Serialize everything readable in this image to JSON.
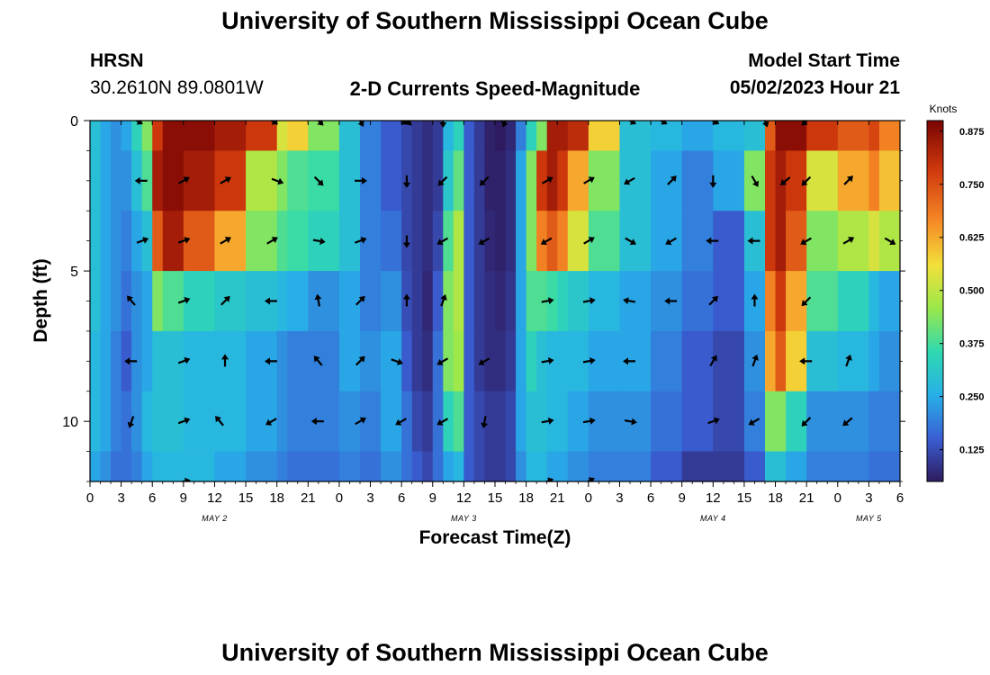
{
  "header": {
    "title": "University of Southern Mississippi Ocean Cube",
    "station": "HRSN",
    "coords": "30.2610N  89.0801W",
    "subtitle": "2-D Currents Speed-Magnitude",
    "model_start_label": "Model Start Time",
    "model_start_value": "05/02/2023 Hour 21"
  },
  "footer": {
    "title": "University of Southern Mississippi Ocean Cube"
  },
  "colors": {
    "scale": [
      "#2e1b5f",
      "#3a5fd4",
      "#27b0e8",
      "#2fd9b0",
      "#9ae84a",
      "#f2e03a",
      "#f68a26",
      "#d13a0d",
      "#7a0403"
    ],
    "arrow": "#000000"
  },
  "chart_data": {
    "type": "heatmap",
    "title": "2-D Currents Speed-Magnitude",
    "xlabel": "Forecast Time(Z)",
    "ylabel": "Depth (ft)",
    "x_tick_labels": [
      "0",
      "3",
      "6",
      "9",
      "12",
      "15",
      "18",
      "21",
      "0",
      "3",
      "6",
      "9",
      "12",
      "15",
      "18",
      "21",
      "0",
      "3",
      "6",
      "9",
      "12",
      "15",
      "18",
      "21",
      "0",
      "3",
      "6"
    ],
    "x_range_hours": [
      0,
      78
    ],
    "y_tick_labels": [
      "0",
      "5",
      "10"
    ],
    "y_ticks": [
      0,
      5,
      10
    ],
    "y_range_ft": [
      0,
      12
    ],
    "date_labels": [
      {
        "text": "MAY 2",
        "hour": 12
      },
      {
        "text": "MAY 3",
        "hour": 36
      },
      {
        "text": "MAY 4",
        "hour": 60
      },
      {
        "text": "MAY 5",
        "hour": 75
      }
    ],
    "colorbar": {
      "label": "Knots",
      "ticks": [
        "0.125",
        "0.250",
        "0.375",
        "0.500",
        "0.625",
        "0.750",
        "0.875"
      ],
      "tick_values": [
        0.125,
        0.25,
        0.375,
        0.5,
        0.625,
        0.75,
        0.875
      ],
      "range": [
        0.05,
        0.9
      ]
    },
    "depth_levels_ft": [
      0,
      2,
      4,
      6,
      8,
      10,
      12
    ],
    "time_segments_hours": [
      0,
      1,
      2,
      3,
      4,
      5,
      6,
      7,
      9,
      12,
      15,
      18,
      19,
      21,
      24,
      26,
      28,
      30,
      31,
      32,
      33,
      34,
      35,
      36,
      37,
      38,
      39,
      40,
      41,
      42,
      43,
      44,
      45,
      46,
      48,
      51,
      54,
      57,
      60,
      63,
      65,
      66,
      67,
      69,
      72,
      75,
      76,
      78
    ],
    "speed_knots_by_level": [
      [
        0.3,
        0.25,
        0.22,
        0.25,
        0.35,
        0.45,
        0.8,
        0.88,
        0.88,
        0.85,
        0.8,
        0.55,
        0.6,
        0.45,
        0.3,
        0.2,
        0.15,
        0.12,
        0.1,
        0.08,
        0.1,
        0.28,
        0.35,
        0.15,
        0.1,
        0.06,
        0.05,
        0.07,
        0.2,
        0.35,
        0.45,
        0.85,
        0.85,
        0.82,
        0.6,
        0.3,
        0.28,
        0.25,
        0.28,
        0.3,
        0.75,
        0.88,
        0.88,
        0.8,
        0.75,
        0.78,
        0.7
      ],
      [
        0.3,
        0.25,
        0.22,
        0.22,
        0.3,
        0.4,
        0.85,
        0.88,
        0.85,
        0.8,
        0.5,
        0.45,
        0.4,
        0.38,
        0.3,
        0.2,
        0.15,
        0.12,
        0.1,
        0.08,
        0.1,
        0.32,
        0.42,
        0.15,
        0.1,
        0.06,
        0.06,
        0.08,
        0.25,
        0.45,
        0.8,
        0.85,
        0.8,
        0.65,
        0.45,
        0.3,
        0.25,
        0.2,
        0.25,
        0.45,
        0.8,
        0.85,
        0.8,
        0.55,
        0.65,
        0.7,
        0.62
      ],
      [
        0.3,
        0.25,
        0.22,
        0.2,
        0.25,
        0.3,
        0.75,
        0.85,
        0.75,
        0.65,
        0.45,
        0.4,
        0.38,
        0.35,
        0.3,
        0.2,
        0.18,
        0.12,
        0.1,
        0.08,
        0.12,
        0.4,
        0.5,
        0.15,
        0.1,
        0.07,
        0.06,
        0.08,
        0.25,
        0.45,
        0.7,
        0.75,
        0.7,
        0.55,
        0.4,
        0.3,
        0.25,
        0.2,
        0.15,
        0.3,
        0.8,
        0.85,
        0.75,
        0.45,
        0.5,
        0.55,
        0.5
      ],
      [
        0.3,
        0.25,
        0.22,
        0.18,
        0.22,
        0.25,
        0.45,
        0.4,
        0.35,
        0.32,
        0.3,
        0.28,
        0.26,
        0.22,
        0.25,
        0.2,
        0.22,
        0.13,
        0.1,
        0.07,
        0.15,
        0.45,
        0.5,
        0.15,
        0.1,
        0.08,
        0.07,
        0.09,
        0.25,
        0.4,
        0.4,
        0.38,
        0.35,
        0.32,
        0.28,
        0.25,
        0.22,
        0.18,
        0.15,
        0.25,
        0.7,
        0.8,
        0.65,
        0.4,
        0.35,
        0.28,
        0.25
      ],
      [
        0.28,
        0.25,
        0.2,
        0.15,
        0.22,
        0.25,
        0.3,
        0.3,
        0.28,
        0.28,
        0.25,
        0.22,
        0.2,
        0.2,
        0.25,
        0.22,
        0.25,
        0.15,
        0.1,
        0.08,
        0.18,
        0.45,
        0.48,
        0.15,
        0.1,
        0.08,
        0.08,
        0.1,
        0.25,
        0.35,
        0.3,
        0.28,
        0.28,
        0.28,
        0.25,
        0.25,
        0.2,
        0.15,
        0.12,
        0.22,
        0.65,
        0.75,
        0.6,
        0.3,
        0.28,
        0.25,
        0.22
      ],
      [
        0.28,
        0.25,
        0.2,
        0.18,
        0.22,
        0.28,
        0.3,
        0.3,
        0.28,
        0.28,
        0.25,
        0.22,
        0.2,
        0.2,
        0.22,
        0.2,
        0.25,
        0.18,
        0.12,
        0.1,
        0.18,
        0.35,
        0.4,
        0.15,
        0.12,
        0.1,
        0.1,
        0.12,
        0.25,
        0.3,
        0.3,
        0.28,
        0.28,
        0.25,
        0.22,
        0.22,
        0.18,
        0.15,
        0.12,
        0.2,
        0.45,
        0.45,
        0.35,
        0.22,
        0.22,
        0.2,
        0.2
      ],
      [
        0.25,
        0.22,
        0.18,
        0.18,
        0.2,
        0.25,
        0.28,
        0.28,
        0.28,
        0.25,
        0.22,
        0.2,
        0.18,
        0.18,
        0.2,
        0.18,
        0.22,
        0.18,
        0.15,
        0.12,
        0.18,
        0.25,
        0.28,
        0.15,
        0.12,
        0.1,
        0.1,
        0.12,
        0.22,
        0.28,
        0.28,
        0.25,
        0.25,
        0.22,
        0.2,
        0.2,
        0.15,
        0.1,
        0.1,
        0.15,
        0.3,
        0.3,
        0.25,
        0.2,
        0.2,
        0.18,
        0.18
      ]
    ],
    "current_vectors": {
      "note": "direction in degrees clockwise from north (toward)",
      "rows": [
        {
          "depth_ft": 0,
          "vectors": [
            {
              "h": 4.5,
              "dir": 120
            },
            {
              "h": 17.5,
              "dir": 120
            },
            {
              "h": 22,
              "dir": 135
            },
            {
              "h": 26,
              "dir": 150
            },
            {
              "h": 30,
              "dir": 120
            },
            {
              "h": 30.5,
              "dir": 135
            },
            {
              "h": 34,
              "dir": 180
            },
            {
              "h": 40,
              "dir": 200
            },
            {
              "h": 52,
              "dir": 120
            },
            {
              "h": 55,
              "dir": 120
            },
            {
              "h": 60,
              "dir": 120
            },
            {
              "h": 65,
              "dir": 160
            },
            {
              "h": 69,
              "dir": 225
            }
          ]
        },
        {
          "depth_ft": 2,
          "vectors": [
            {
              "h": 5,
              "dir": 270
            },
            {
              "h": 9,
              "dir": 60
            },
            {
              "h": 13,
              "dir": 60
            },
            {
              "h": 18,
              "dir": 110
            },
            {
              "h": 22,
              "dir": 135
            },
            {
              "h": 26,
              "dir": 90
            },
            {
              "h": 30.5,
              "dir": 180
            },
            {
              "h": 34,
              "dir": 225
            },
            {
              "h": 38,
              "dir": 225
            },
            {
              "h": 44,
              "dir": 60
            },
            {
              "h": 48,
              "dir": 60
            },
            {
              "h": 52,
              "dir": 240
            },
            {
              "h": 56,
              "dir": 45
            },
            {
              "h": 60,
              "dir": 180
            },
            {
              "h": 64,
              "dir": 150
            },
            {
              "h": 67,
              "dir": 230
            },
            {
              "h": 69,
              "dir": 225
            },
            {
              "h": 73,
              "dir": 45
            }
          ]
        },
        {
          "depth_ft": 4,
          "vectors": [
            {
              "h": 5,
              "dir": 70
            },
            {
              "h": 9,
              "dir": 70
            },
            {
              "h": 13,
              "dir": 60
            },
            {
              "h": 17.5,
              "dir": 60
            },
            {
              "h": 22,
              "dir": 100
            },
            {
              "h": 26,
              "dir": 70
            },
            {
              "h": 30.5,
              "dir": 180
            },
            {
              "h": 34,
              "dir": 240
            },
            {
              "h": 38,
              "dir": 240
            },
            {
              "h": 44,
              "dir": 240
            },
            {
              "h": 48,
              "dir": 60
            },
            {
              "h": 52,
              "dir": 120
            },
            {
              "h": 56,
              "dir": 240
            },
            {
              "h": 60,
              "dir": 270
            },
            {
              "h": 64,
              "dir": 270
            },
            {
              "h": 69,
              "dir": 240
            },
            {
              "h": 73,
              "dir": 60
            },
            {
              "h": 77,
              "dir": 120
            }
          ]
        },
        {
          "depth_ft": 6,
          "vectors": [
            {
              "h": 4,
              "dir": 320
            },
            {
              "h": 9,
              "dir": 70
            },
            {
              "h": 13,
              "dir": 45
            },
            {
              "h": 17.5,
              "dir": 270
            },
            {
              "h": 22,
              "dir": 350
            },
            {
              "h": 26,
              "dir": 45
            },
            {
              "h": 30.5,
              "dir": 0
            },
            {
              "h": 34,
              "dir": 20
            },
            {
              "h": 44,
              "dir": 80
            },
            {
              "h": 48,
              "dir": 80
            },
            {
              "h": 52,
              "dir": 280
            },
            {
              "h": 56,
              "dir": 270
            },
            {
              "h": 60,
              "dir": 45
            },
            {
              "h": 64,
              "dir": 0
            },
            {
              "h": 69,
              "dir": 225
            }
          ]
        },
        {
          "depth_ft": 8,
          "vectors": [
            {
              "h": 4,
              "dir": 270
            },
            {
              "h": 9,
              "dir": 70
            },
            {
              "h": 13,
              "dir": 0
            },
            {
              "h": 17.5,
              "dir": 270
            },
            {
              "h": 22,
              "dir": 320
            },
            {
              "h": 26,
              "dir": 45
            },
            {
              "h": 29.5,
              "dir": 110
            },
            {
              "h": 34,
              "dir": 240
            },
            {
              "h": 38,
              "dir": 240
            },
            {
              "h": 44,
              "dir": 80
            },
            {
              "h": 48,
              "dir": 80
            },
            {
              "h": 52,
              "dir": 270
            },
            {
              "h": 60,
              "dir": 30
            },
            {
              "h": 64,
              "dir": 20
            },
            {
              "h": 69,
              "dir": 270
            },
            {
              "h": 73,
              "dir": 20
            }
          ]
        },
        {
          "depth_ft": 10,
          "vectors": [
            {
              "h": 4,
              "dir": 200
            },
            {
              "h": 9,
              "dir": 70
            },
            {
              "h": 12.5,
              "dir": 320
            },
            {
              "h": 17.5,
              "dir": 240
            },
            {
              "h": 22,
              "dir": 270
            },
            {
              "h": 26,
              "dir": 60
            },
            {
              "h": 30,
              "dir": 240
            },
            {
              "h": 34,
              "dir": 240
            },
            {
              "h": 38,
              "dir": 190
            },
            {
              "h": 44,
              "dir": 80
            },
            {
              "h": 48,
              "dir": 80
            },
            {
              "h": 52,
              "dir": 100
            },
            {
              "h": 60,
              "dir": 70
            },
            {
              "h": 64,
              "dir": 240
            },
            {
              "h": 69,
              "dir": 225
            },
            {
              "h": 73,
              "dir": 230
            }
          ]
        },
        {
          "depth_ft": 12,
          "vectors": [
            {
              "h": 9,
              "dir": 80
            },
            {
              "h": 44,
              "dir": 70
            },
            {
              "h": 48,
              "dir": 60
            }
          ]
        }
      ]
    }
  }
}
